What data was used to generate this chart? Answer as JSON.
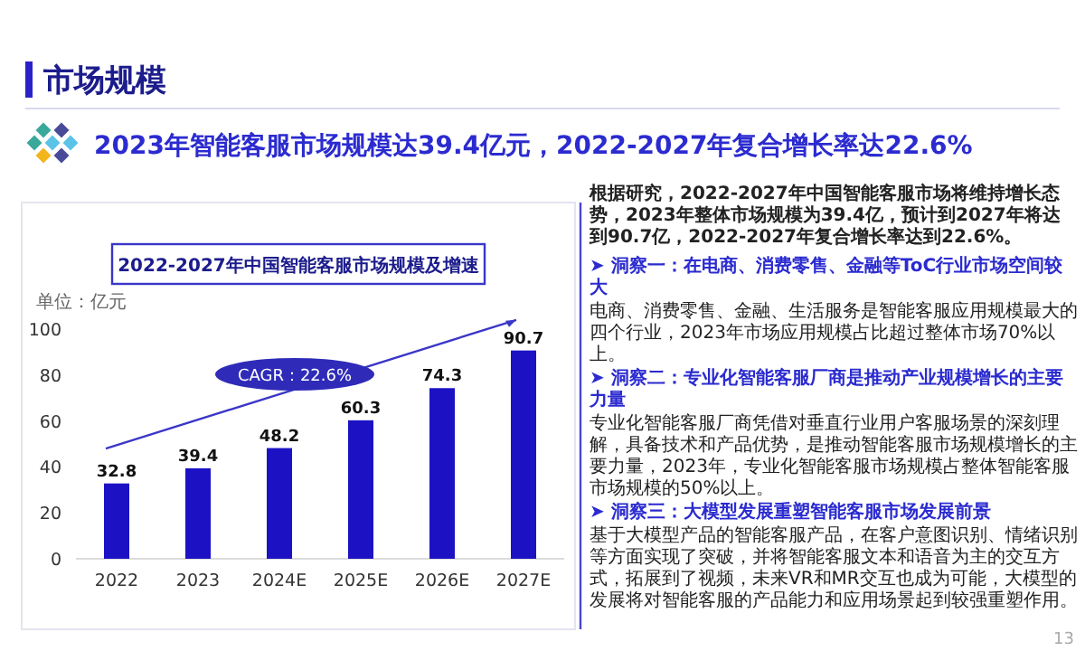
{
  "chart_data": {
    "type": "bar",
    "title": "2022-2027年中国智能客服市场规模及增速",
    "ylabel": "单位：亿元",
    "categories": [
      "2022",
      "2023",
      "2024E",
      "2025E",
      "2026E",
      "2027E"
    ],
    "values": [
      32.8,
      39.4,
      48.2,
      60.3,
      74.3,
      90.7
    ],
    "color": "#1c12c4",
    "ylim": [
      0,
      100
    ],
    "yticks": [
      0,
      20,
      40,
      60,
      80,
      100
    ],
    "grid": false,
    "data_labels": true,
    "annotations": [
      "市场规模",
      "2023年智能客服市场规模达39.4亿元，2022-2027年复合增长率达22.6%",
      "CAGR：22.6%",
      "根据研究，2022-2027年中国智能客服市场将维持增长态势，2023年整体市场规模为39.4亿，预计到2027年将达到90.7亿，2022-2027年复合增长率达到22.6%。",
      "➤ 洞察一：在电商、消费零售、金融等ToC行业市场空间较大",
      "电商、消费零售、金融、生活服务是智能客服应用规模最大的四个行业，2023年市场应用规模占比超过整体市场70%以上。",
      "➤ 洞察二：专业化智能客服厂商是推动产业规模增长的主要力量",
      "专业化智能客服厂商凭借对垂直行业用户客服场景的深刻理解，具备技术和产品优势，是推动智能客服市场规模增长的主要力量，2023年，专业化智能客服市场规模占整体智能客服市场规模的50%以上。",
      "➤ 洞察三：大模型发展重塑智能客服市场发展前景",
      "基于大模型产品的智能客服产品，在客户意图识别、情绪识别等方面实现了突破，并将智能客服文本和语音为主的交互方式，拓展到了视频，未来VR和MR交互也成为可能，大模型的发展将对智能客服的产品能力和应用场景起到较强重塑作用。",
      "13"
    ]
  }
}
